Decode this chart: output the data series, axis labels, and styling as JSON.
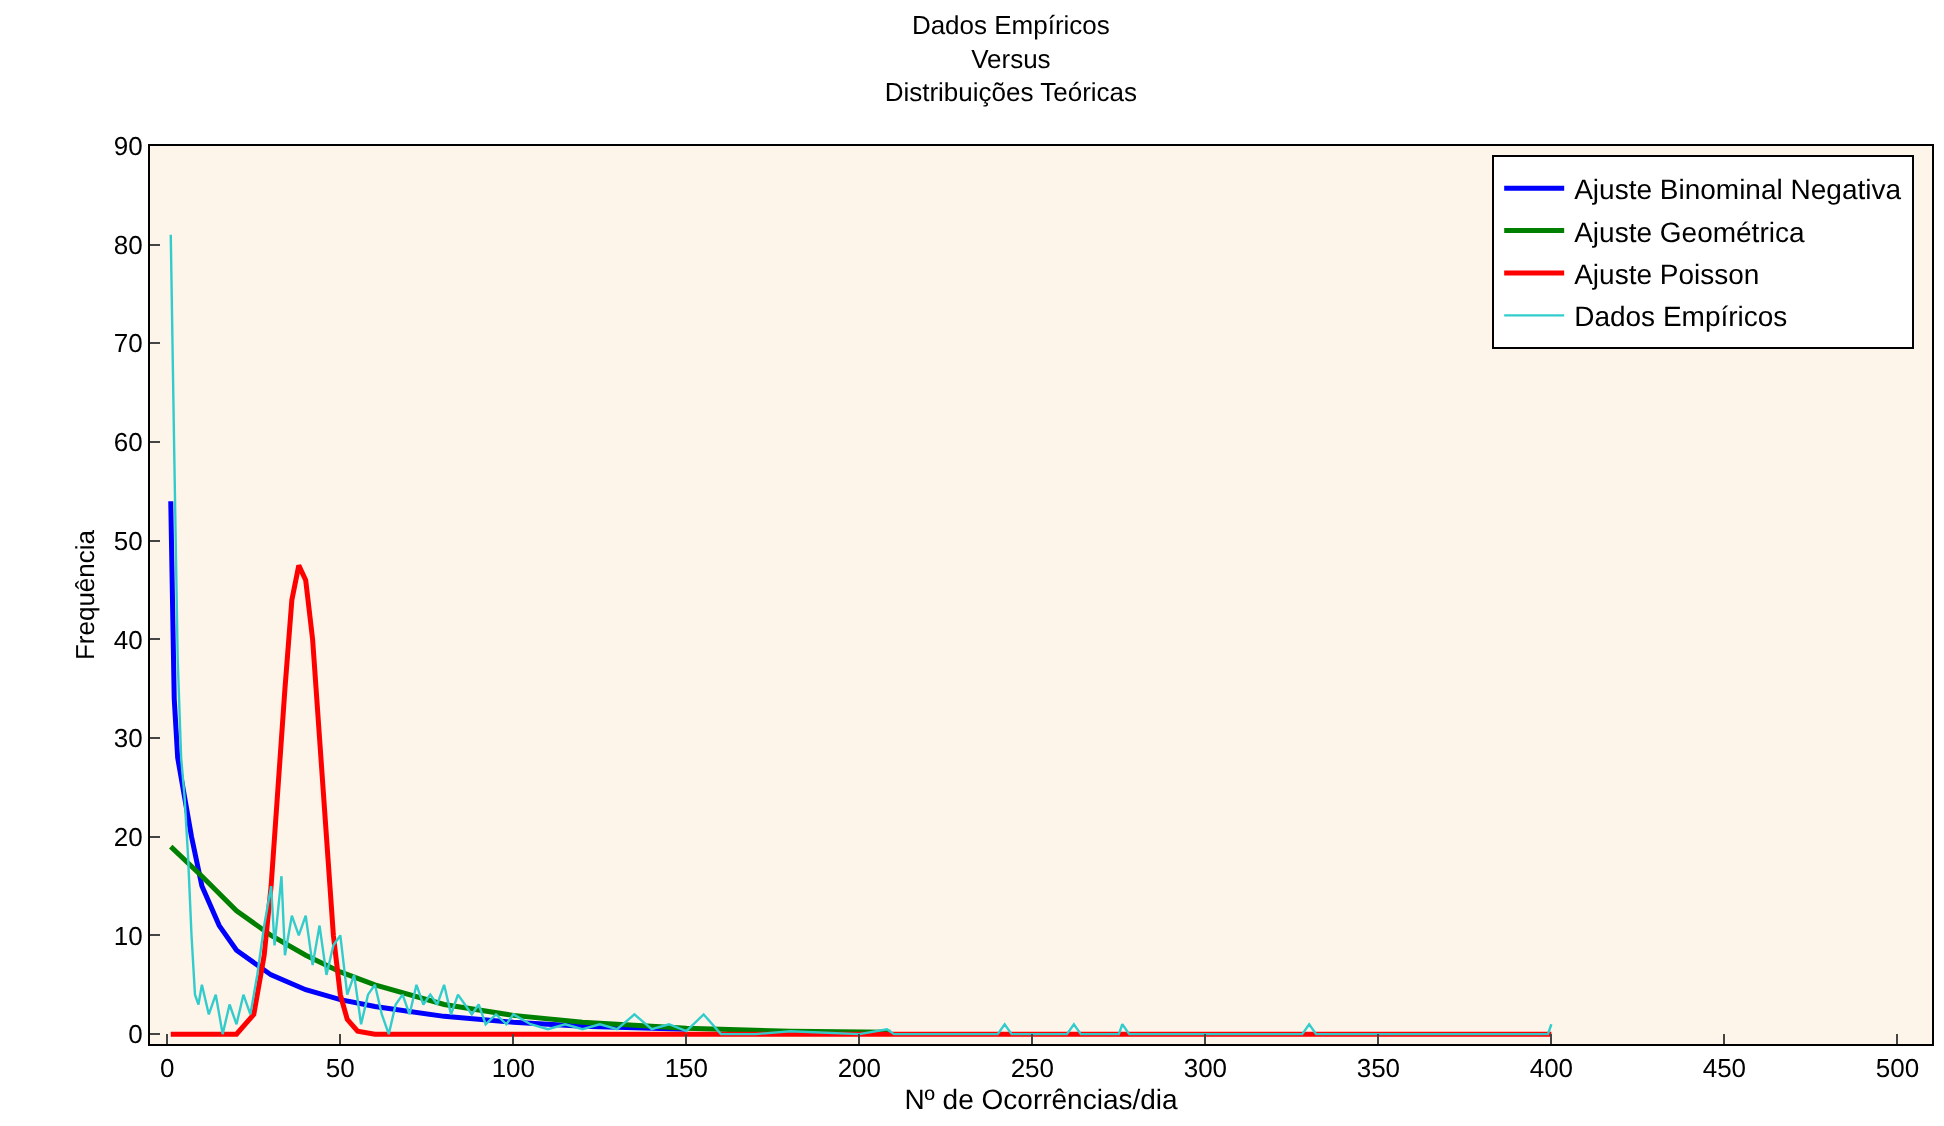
{
  "chart_data": {
    "type": "line",
    "title": "Dados Empíricos\nVersus\nDistribuições Teóricas",
    "xlabel": "Nº de Ocorrências/dia",
    "ylabel": "Frequência",
    "xlim": [
      -5,
      510
    ],
    "ylim": [
      -1,
      90
    ],
    "xticks": [
      0,
      50,
      100,
      150,
      200,
      250,
      300,
      350,
      400,
      450,
      500
    ],
    "yticks": [
      0,
      10,
      20,
      30,
      40,
      50,
      60,
      70,
      80,
      90
    ],
    "grid": false,
    "legend": "top right",
    "marker": "none",
    "line_style": "solid",
    "series": [
      {
        "name": "Ajuste Binominal Negativa",
        "color": "#0000ff",
        "x": [
          1,
          2,
          3,
          5,
          7,
          10,
          15,
          20,
          30,
          40,
          50,
          60,
          80,
          100,
          120,
          150
        ],
        "values": [
          54,
          34,
          28,
          24,
          20,
          15,
          11,
          8.5,
          6,
          4.5,
          3.5,
          2.8,
          1.8,
          1.2,
          0.8,
          0.5
        ]
      },
      {
        "name": "Ajuste Geométrica",
        "color": "#008000",
        "x": [
          1,
          10,
          20,
          30,
          40,
          50,
          60,
          80,
          100,
          120,
          150,
          180,
          209
        ],
        "values": [
          19,
          16,
          12.5,
          10,
          8,
          6.3,
          5,
          3,
          1.9,
          1.2,
          0.6,
          0.3,
          0.2
        ]
      },
      {
        "name": "Ajuste Poisson",
        "color": "#ff0000",
        "x": [
          1,
          20,
          25,
          28,
          30,
          32,
          34,
          36,
          38,
          40,
          42,
          44,
          46,
          48,
          50,
          52,
          55,
          60,
          400
        ],
        "values": [
          0,
          0,
          2,
          8,
          15,
          25,
          35,
          44,
          47.5,
          46,
          40,
          30,
          20,
          10,
          4,
          1.5,
          0.3,
          0,
          0
        ]
      },
      {
        "name": "Dados Empíricos",
        "color": "#33cccc",
        "x": [
          1,
          2,
          3,
          4,
          5,
          6,
          7,
          8,
          9,
          10,
          12,
          14,
          16,
          18,
          20,
          22,
          24,
          26,
          28,
          30,
          31,
          33,
          34,
          36,
          38,
          40,
          42,
          44,
          46,
          48,
          50,
          52,
          54,
          56,
          58,
          60,
          62,
          64,
          66,
          68,
          70,
          72,
          74,
          76,
          78,
          80,
          82,
          84,
          86,
          88,
          90,
          92,
          95,
          98,
          100,
          105,
          110,
          115,
          120,
          125,
          130,
          135,
          140,
          145,
          150,
          155,
          160,
          170,
          180,
          200,
          208,
          210,
          240,
          242,
          244,
          260,
          262,
          264,
          275,
          276,
          278,
          328,
          330,
          332,
          399,
          400
        ],
        "values": [
          81,
          59,
          38,
          28,
          24,
          18,
          10,
          4,
          3,
          5,
          2,
          4,
          0,
          3,
          1,
          4,
          2,
          6,
          11,
          15,
          9,
          16,
          8,
          12,
          10,
          12,
          7,
          11,
          6,
          9,
          10,
          4,
          6,
          1,
          4,
          5,
          2,
          0,
          3,
          4,
          2,
          5,
          3,
          4,
          3,
          5,
          2,
          4,
          3,
          2,
          3,
          1,
          2,
          1,
          2,
          1,
          0.5,
          1,
          0.5,
          1,
          0.5,
          2,
          0.5,
          1,
          0.3,
          2,
          0,
          0,
          0.3,
          0,
          0.5,
          0,
          0,
          1,
          0,
          0,
          1,
          0,
          0,
          1,
          0,
          0,
          1,
          0,
          0,
          1
        ]
      }
    ]
  }
}
